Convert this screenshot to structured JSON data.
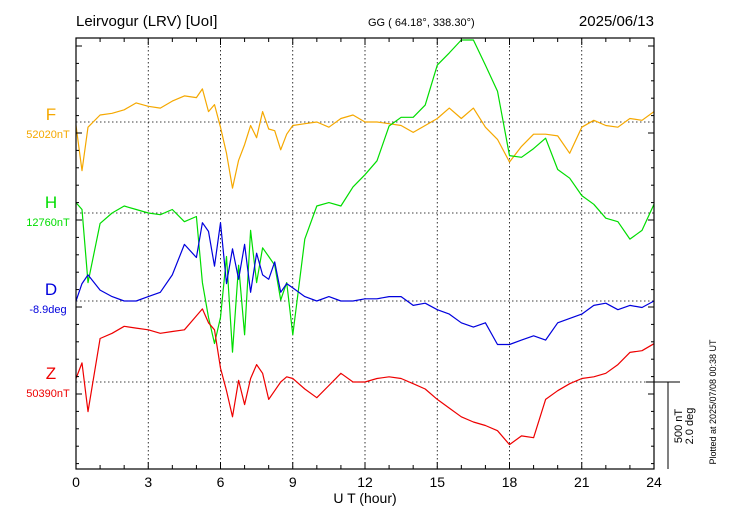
{
  "header": {
    "station": "Leirvogur (LRV)  [UoI]",
    "coords": "GG ( 64.18°, 338.30°)",
    "date": "2025/06/13"
  },
  "side_note": "Plotted at 2025/07/08 00:38 UT",
  "scale_bar": {
    "nt": "500 nT",
    "deg": "2.0 deg"
  },
  "colors": {
    "F": "#f5a800",
    "H": "#00dd00",
    "D": "#0000dd",
    "Z": "#ee0000",
    "frame": "#000000"
  },
  "chart_data": {
    "type": "line",
    "xlabel": "U T (hour)",
    "xlim": [
      0,
      24
    ],
    "x_ticks": [
      "0",
      "3",
      "6",
      "9",
      "12",
      "15",
      "18",
      "21",
      "24"
    ],
    "grid": true,
    "x": [
      0,
      0.25,
      0.5,
      1,
      1.5,
      2,
      2.5,
      3,
      3.5,
      4,
      4.5,
      5,
      5.25,
      5.5,
      5.75,
      6,
      6.25,
      6.5,
      6.75,
      7,
      7.25,
      7.5,
      7.75,
      8,
      8.25,
      8.5,
      8.75,
      9,
      9.5,
      10,
      10.5,
      11,
      11.5,
      12,
      12.5,
      13,
      13.5,
      14,
      14.5,
      15,
      15.5,
      16,
      16.5,
      17,
      17.5,
      18,
      18.5,
      19,
      19.5,
      20,
      20.5,
      21,
      21.5,
      22,
      22.5,
      23,
      23.5,
      24
    ],
    "series": [
      {
        "name": "F",
        "label": "F",
        "baseline": "52020nT",
        "unit": "nT",
        "values": [
          -20,
          -280,
          -30,
          40,
          50,
          70,
          110,
          90,
          80,
          120,
          150,
          140,
          190,
          60,
          100,
          -30,
          -180,
          -380,
          -220,
          -130,
          -20,
          -90,
          60,
          -40,
          -50,
          -160,
          -70,
          -20,
          -10,
          0,
          -30,
          20,
          40,
          0,
          0,
          -10,
          -20,
          -60,
          -20,
          20,
          80,
          20,
          80,
          -30,
          -100,
          -230,
          -140,
          -70,
          -70,
          -80,
          -180,
          -30,
          10,
          -20,
          -30,
          20,
          10,
          60
        ]
      },
      {
        "name": "H",
        "label": "H",
        "baseline": "12760nT",
        "unit": "nT",
        "values": [
          60,
          20,
          -400,
          -60,
          0,
          40,
          20,
          0,
          -10,
          20,
          -50,
          -20,
          -400,
          -600,
          -750,
          -600,
          -250,
          -800,
          -300,
          -700,
          -100,
          -400,
          -200,
          -250,
          -300,
          -500,
          -400,
          -700,
          -150,
          40,
          60,
          40,
          150,
          220,
          300,
          500,
          550,
          550,
          620,
          850,
          920,
          1050,
          1000,
          850,
          700,
          330,
          320,
          370,
          430,
          250,
          200,
          100,
          50,
          -30,
          -50,
          -150,
          -100,
          50
        ]
      },
      {
        "name": "D",
        "label": "D",
        "baseline": "-8.9deg",
        "unit": "deg",
        "values": [
          0.0,
          0.4,
          0.6,
          0.25,
          0.1,
          0.0,
          0.0,
          0.1,
          0.2,
          0.6,
          1.3,
          1.0,
          1.8,
          1.6,
          0.8,
          1.8,
          0.4,
          1.2,
          0.5,
          1.3,
          0.2,
          1.1,
          0.6,
          0.5,
          0.9,
          0.2,
          0.4,
          0.3,
          0.1,
          0.0,
          0.1,
          0.0,
          0.0,
          0.05,
          0.05,
          0.1,
          0.1,
          -0.1,
          -0.05,
          -0.2,
          -0.3,
          -0.5,
          -0.6,
          -0.5,
          -1.0,
          -1.0,
          -0.9,
          -0.8,
          -0.9,
          -0.5,
          -0.4,
          -0.3,
          -0.1,
          -0.05,
          -0.2,
          -0.1,
          -0.15,
          0.0
        ]
      },
      {
        "name": "Z",
        "label": "Z",
        "baseline": "50390nT",
        "unit": "nT",
        "values": [
          20,
          110,
          -170,
          250,
          280,
          320,
          310,
          300,
          280,
          290,
          300,
          380,
          420,
          340,
          300,
          80,
          -50,
          -200,
          10,
          -130,
          20,
          100,
          50,
          -100,
          -50,
          0,
          30,
          20,
          -40,
          -90,
          -20,
          50,
          0,
          0,
          20,
          30,
          20,
          -10,
          -40,
          -100,
          -150,
          -200,
          -230,
          -250,
          -280,
          -360,
          -310,
          -320,
          -100,
          -50,
          -10,
          20,
          30,
          50,
          100,
          170,
          180,
          220
        ]
      }
    ]
  }
}
